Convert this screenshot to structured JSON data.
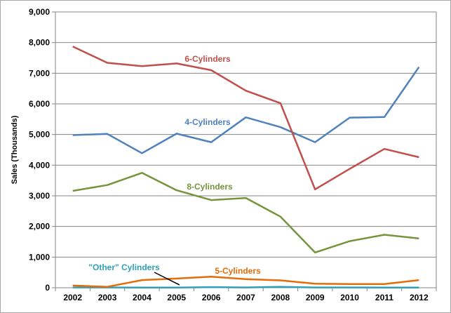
{
  "chart_data": {
    "type": "line",
    "title": "",
    "xlabel": "",
    "ylabel": "Sales (Thousands)",
    "x": [
      "2002",
      "2003",
      "2004",
      "2005",
      "2006",
      "2007",
      "2008",
      "2009",
      "2010",
      "2011",
      "2012"
    ],
    "ylim": [
      0,
      9000
    ],
    "yticks": [
      "0",
      "1,000",
      "2,000",
      "3,000",
      "4,000",
      "5,000",
      "6,000",
      "7,000",
      "8,000",
      "9,000"
    ],
    "grid": true,
    "legend": "none (series labeled inline)",
    "series": [
      {
        "name": "6-Cylinders",
        "color": "#c0504d",
        "values": [
          7870,
          7340,
          7230,
          7320,
          7100,
          6430,
          6020,
          3210,
          3880,
          4530,
          4260
        ]
      },
      {
        "name": "4-Cylinders",
        "color": "#4f81bd",
        "values": [
          4980,
          5020,
          4390,
          5030,
          4750,
          5560,
          5240,
          4750,
          5550,
          5570,
          7200
        ]
      },
      {
        "name": "8-Cylinders",
        "color": "#77933c",
        "values": [
          3160,
          3350,
          3750,
          3180,
          2860,
          2930,
          2320,
          1150,
          1520,
          1730,
          1610
        ]
      },
      {
        "name": "5-Cylinders",
        "color": "#e46c0a",
        "values": [
          70,
          30,
          250,
          300,
          360,
          280,
          240,
          130,
          120,
          120,
          250
        ]
      },
      {
        "name": "\"Other\" Cylinders",
        "color": "#31a0b7",
        "values": [
          10,
          10,
          5,
          5,
          20,
          10,
          30,
          10,
          10,
          5,
          5
        ]
      }
    ]
  }
}
